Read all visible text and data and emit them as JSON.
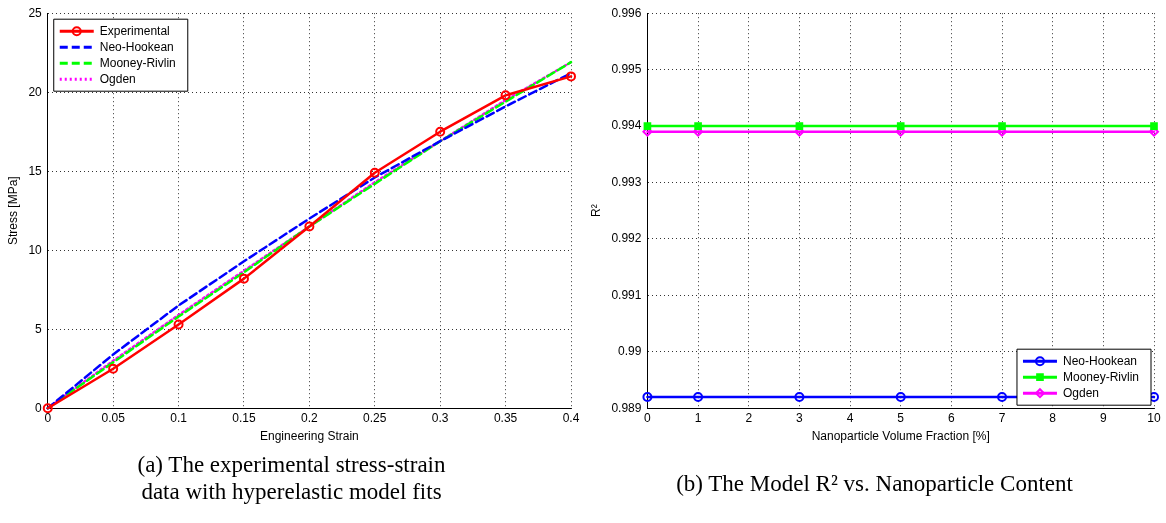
{
  "chart_data": [
    {
      "type": "line",
      "title": "(a) The experimental stress-strain data with hyperelastic model fits",
      "xlabel": "Engineering Strain",
      "ylabel": "Stress [MPa]",
      "x": [
        0,
        0.05,
        0.1,
        0.15,
        0.2,
        0.25,
        0.3,
        0.35,
        0.4
      ],
      "xlim": [
        0,
        0.4
      ],
      "xticks": [
        0,
        0.05,
        0.1,
        0.15,
        0.2,
        0.25,
        0.3,
        0.35,
        0.4
      ],
      "ylim": [
        0,
        25
      ],
      "yticks": [
        0,
        5,
        10,
        15,
        20,
        25
      ],
      "grid": true,
      "legend": "top left",
      "series": [
        {
          "name": "Experimental",
          "color": "#ff0000",
          "marker": "circle",
          "line_style": "solid",
          "values": [
            0,
            2.5,
            5.3,
            8.2,
            11.5,
            14.9,
            17.5,
            19.8,
            21.0
          ]
        },
        {
          "name": "Neo-Hookean",
          "color": "#0000ff",
          "marker": "none",
          "line_style": "dashed",
          "values": [
            0,
            3.4,
            6.5,
            9.3,
            12.0,
            14.6,
            16.9,
            19.1,
            21.2
          ]
        },
        {
          "name": "Mooney-Rivlin",
          "color": "#00ff00",
          "marker": "none",
          "line_style": "dashed",
          "values": [
            0,
            2.9,
            5.8,
            8.6,
            11.5,
            14.2,
            16.9,
            19.4,
            21.9
          ]
        },
        {
          "name": "Ogden",
          "color": "#ff00ff",
          "marker": "none",
          "line_style": "dotted",
          "values": [
            0,
            3.0,
            5.9,
            8.7,
            11.5,
            14.3,
            16.9,
            19.5,
            21.9
          ]
        }
      ]
    },
    {
      "type": "line",
      "title": "(b) The Model R² vs. Nanoparticle Content",
      "xlabel": "Nanoparticle Volume Fraction [%]",
      "ylabel": "R²",
      "x": [
        0,
        1,
        3,
        5,
        7,
        10
      ],
      "xlim": [
        0,
        10
      ],
      "xticks": [
        0,
        1,
        2,
        3,
        4,
        5,
        6,
        7,
        8,
        9,
        10
      ],
      "ylim": [
        0.989,
        0.996
      ],
      "yticks": [
        0.989,
        0.99,
        0.991,
        0.992,
        0.993,
        0.994,
        0.995,
        0.996
      ],
      "grid": true,
      "legend": "bottom right",
      "series": [
        {
          "name": "Neo-Hookean",
          "color": "#0000ff",
          "marker": "circle",
          "line_style": "solid",
          "values": [
            0.9892,
            0.9892,
            0.9892,
            0.9892,
            0.9892,
            0.9892
          ]
        },
        {
          "name": "Mooney-Rivlin",
          "color": "#00ff00",
          "marker": "square",
          "line_style": "solid",
          "values": [
            0.994,
            0.994,
            0.994,
            0.994,
            0.994,
            0.994
          ]
        },
        {
          "name": "Ogden",
          "color": "#ff00ff",
          "marker": "diamond",
          "line_style": "solid",
          "values": [
            0.9939,
            0.9939,
            0.9939,
            0.9939,
            0.9939,
            0.9939
          ]
        }
      ]
    }
  ]
}
